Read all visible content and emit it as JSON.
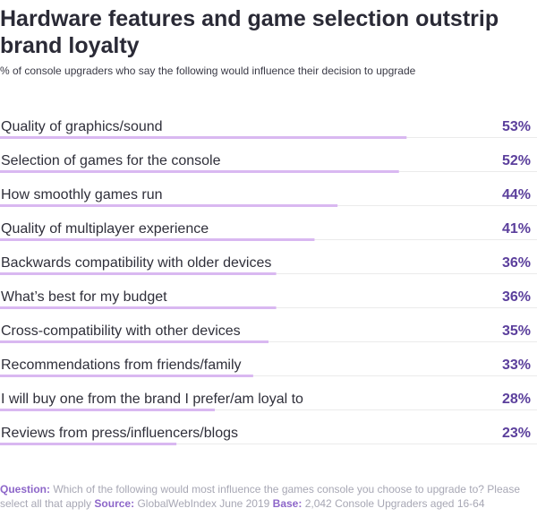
{
  "title": "Hardware features and game selection outstrip brand loyalty",
  "subtitle": "% of console upgraders who say the following would influence their decision to upgrade",
  "colors": {
    "bar": "#d9b8f1",
    "track": "#ebebeb",
    "value": "#5b3f9c",
    "footer_label": "#8d66c9"
  },
  "chart_data": {
    "type": "bar",
    "orientation": "horizontal",
    "categories": [
      "Quality of graphics/sound",
      "Selection of games for the console",
      "How smoothly games run",
      "Quality of multiplayer experience",
      "Backwards compatibility with older devices",
      "What’s best for my budget",
      "Cross-compatibility with other devices",
      "Recommendations from friends/family",
      "I will buy one from the brand I prefer/am loyal to",
      "Reviews from press/influencers/blogs"
    ],
    "values": [
      53,
      52,
      44,
      41,
      36,
      36,
      35,
      33,
      28,
      23
    ],
    "value_labels": [
      "53%",
      "52%",
      "44%",
      "41%",
      "36%",
      "36%",
      "35%",
      "33%",
      "28%",
      "23%"
    ],
    "xlim": [
      0,
      70
    ],
    "grid": false,
    "legend": "none"
  },
  "footer": {
    "question_label": "Question:",
    "question_text": "Which of the following would most influence the games console you choose to upgrade to? Please select all that apply",
    "source_label": "Source:",
    "source_text": "GlobalWebIndex June 2019",
    "base_label": "Base:",
    "base_text": "2,042 Console Upgraders aged 16-64"
  }
}
